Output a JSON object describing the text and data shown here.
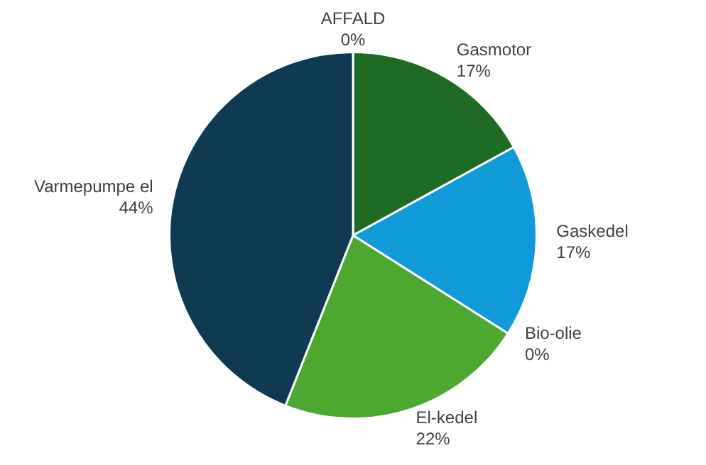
{
  "chart_data": {
    "type": "pie",
    "categories": [
      "AFFALD",
      "Gasmotor",
      "Gaskedel",
      "Bio-olie",
      "El-kedel",
      "Varmepumpe el"
    ],
    "values": [
      0,
      17,
      17,
      0,
      22,
      44
    ],
    "value_labels": [
      "0%",
      "17%",
      "17%",
      "0%",
      "22%",
      "44%"
    ],
    "colors": [
      "#7f7f7f",
      "#1e6b23",
      "#119ad8",
      "#a5a5a5",
      "#4ea72e",
      "#0e3a52"
    ],
    "legend": false
  }
}
